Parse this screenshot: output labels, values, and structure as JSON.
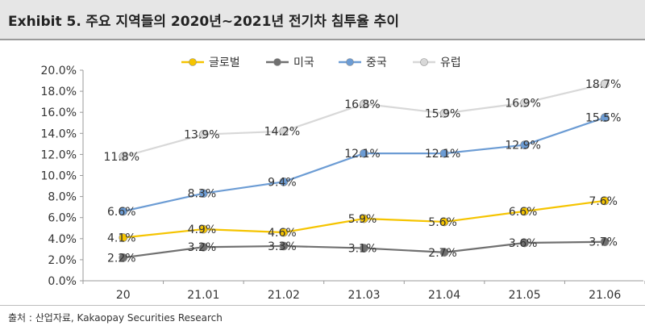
{
  "header": {
    "exhibit": "Exhibit 5.",
    "title": "주요 지역들의 2020년~2021년 전기차 침투율 추이"
  },
  "source": "출처 : 산업자료, Kakaopay Securities Research",
  "chart_data": {
    "type": "line",
    "title": "",
    "xlabel": "",
    "ylabel": "",
    "categories": [
      "20",
      "21.01",
      "21.02",
      "21.03",
      "21.04",
      "21.05",
      "21.06"
    ],
    "ylim": [
      0,
      20
    ],
    "yticks": [
      "0.0%",
      "2.0%",
      "4.0%",
      "6.0%",
      "8.0%",
      "10.0%",
      "12.0%",
      "14.0%",
      "16.0%",
      "18.0%",
      "20.0%"
    ],
    "grid": false,
    "legend_position": "top",
    "series": [
      {
        "name": "글로벌",
        "color": "#f5c400",
        "values": [
          4.1,
          4.9,
          4.6,
          5.9,
          5.6,
          6.6,
          7.6
        ],
        "labels": [
          "4.1%",
          "4.9%",
          "4.6%",
          "5.9%",
          "5.6%",
          "6.6%",
          "7.6%"
        ]
      },
      {
        "name": "미국",
        "color": "#707070",
        "values": [
          2.2,
          3.2,
          3.3,
          3.1,
          2.7,
          3.6,
          3.7
        ],
        "labels": [
          "2.2%",
          "3.2%",
          "3.3%",
          "3.1%",
          "2.7%",
          "3.6%",
          "3.7%"
        ]
      },
      {
        "name": "중국",
        "color": "#6c9cd4",
        "values": [
          6.6,
          8.3,
          9.4,
          12.1,
          12.1,
          12.9,
          15.5
        ],
        "labels": [
          "6.6%",
          "8.3%",
          "9.4%",
          "12.1%",
          "12.1%",
          "12.9%",
          "15.5%"
        ]
      },
      {
        "name": "유럽",
        "color": "#d8d8d8",
        "values": [
          11.8,
          13.9,
          14.2,
          16.8,
          15.9,
          16.9,
          18.7
        ],
        "labels": [
          "11.8%",
          "13.9%",
          "14.2%",
          "16.8%",
          "15.9%",
          "16.9%",
          "18.7%"
        ]
      }
    ]
  }
}
